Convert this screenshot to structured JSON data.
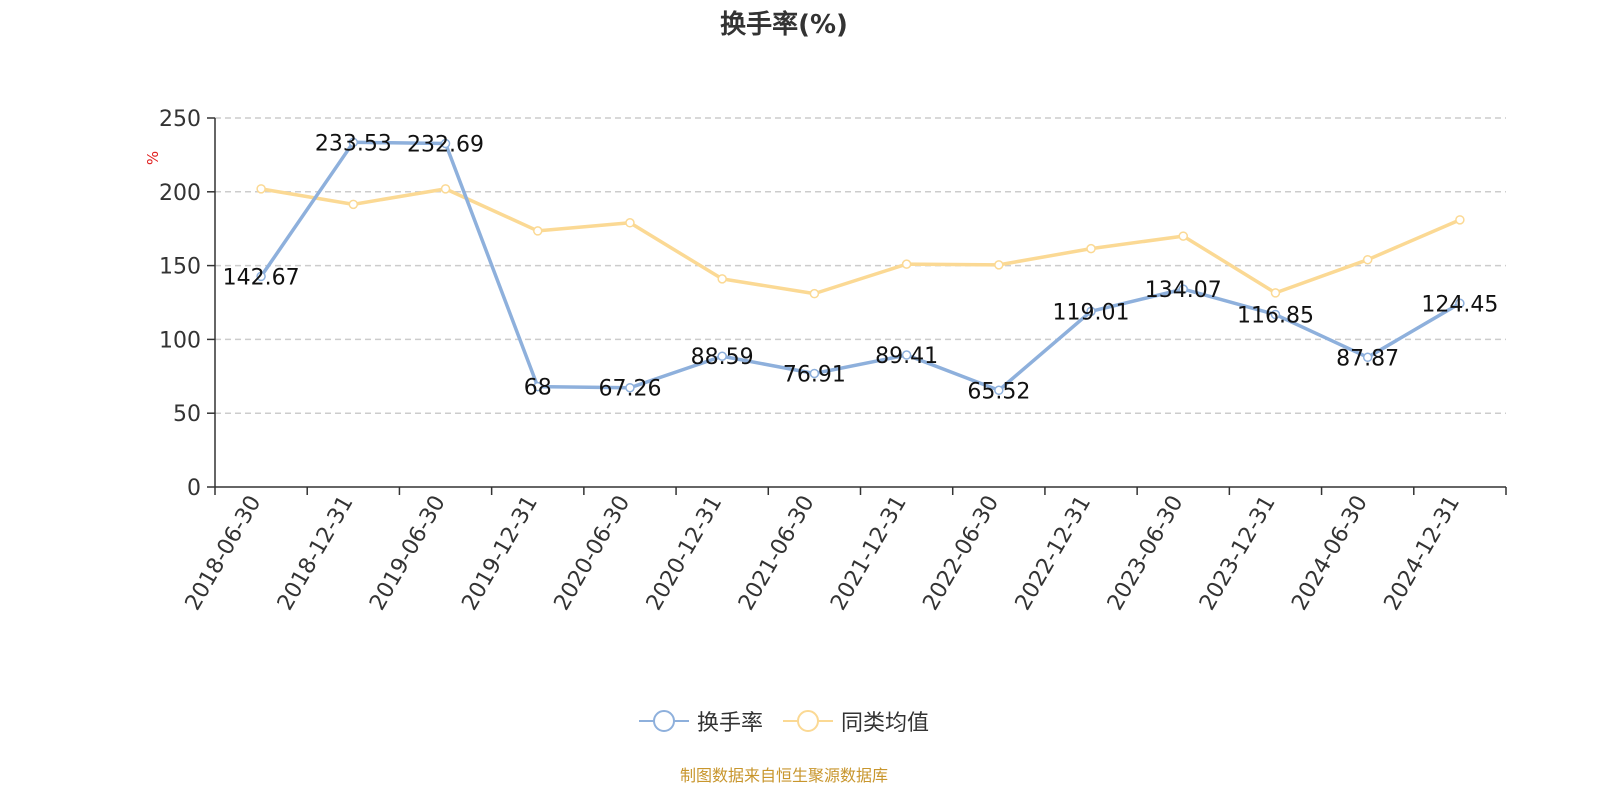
{
  "chart_data": {
    "type": "line",
    "title": "换手率(%)",
    "ylabel": "%",
    "ylim": [
      0,
      250
    ],
    "yticks": [
      0,
      50,
      100,
      150,
      200,
      250
    ],
    "grid": "horizontal dashed",
    "legend_position": "bottom",
    "categories": [
      "2018-06-30",
      "2018-12-31",
      "2019-06-30",
      "2019-12-31",
      "2020-06-30",
      "2020-12-31",
      "2021-06-30",
      "2021-12-31",
      "2022-06-30",
      "2022-12-31",
      "2023-06-30",
      "2023-12-31",
      "2024-06-30",
      "2024-12-31"
    ],
    "series": [
      {
        "name": "换手率",
        "color": "#8eb0dc",
        "show_labels": true,
        "values": [
          142.67,
          233.53,
          232.69,
          68,
          67.26,
          88.59,
          76.91,
          89.41,
          65.52,
          119.01,
          134.07,
          116.85,
          87.87,
          124.45
        ]
      },
      {
        "name": "同类均值",
        "color": "#fbd994",
        "show_labels": false,
        "values": [
          202,
          191.5,
          202,
          173.5,
          179,
          141,
          131,
          151,
          150.5,
          161.5,
          170,
          131.5,
          154,
          181
        ]
      }
    ]
  },
  "source_note": "制图数据来自恒生聚源数据库",
  "colors": {
    "axis": "#333333",
    "grid": "#cccccc",
    "ylabel": "#e02020",
    "source": "#c8962d"
  }
}
